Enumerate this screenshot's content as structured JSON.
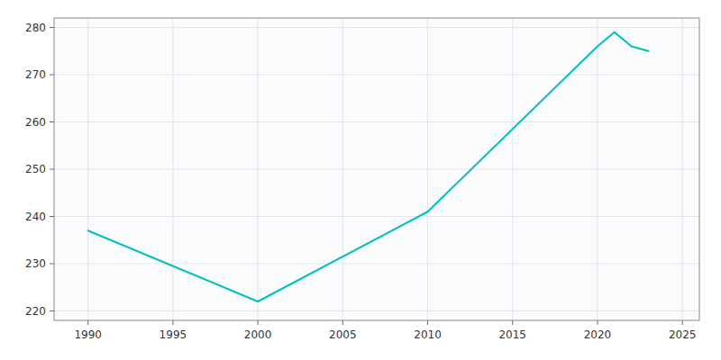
{
  "chart_data": {
    "type": "line",
    "x": [
      1990,
      2000,
      2010,
      2020,
      2021,
      2022,
      2023
    ],
    "values": [
      237,
      222,
      241,
      276,
      279,
      276,
      275
    ],
    "color": "#00BFBF",
    "xlim": [
      1988,
      2026
    ],
    "ylim": [
      218,
      282
    ],
    "xticks": [
      1990,
      1995,
      2000,
      2005,
      2010,
      2015,
      2020,
      2025
    ],
    "yticks": [
      220,
      230,
      240,
      250,
      260,
      270,
      280
    ],
    "grid": true
  }
}
